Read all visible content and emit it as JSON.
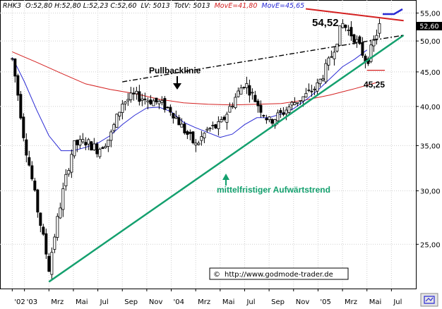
{
  "header": {
    "symbol": "RHK3",
    "ohlc": "O:52,80 H:52,80 L:52,23 C:52,60",
    "lv": "LV: 5013",
    "totv": "TotV: 5013",
    "ma1": "MovE=41,80",
    "ma2": "MovE=45,65"
  },
  "colors": {
    "background": "#ffffff",
    "grid": "#cfcfcf",
    "candle_up": "#ffffff",
    "candle_down": "#000000",
    "ma_fast": "#2a2ad4",
    "ma_slow": "#d42020",
    "trendline": "#14a06e",
    "resistance": "#d42020",
    "header_ma1": "#d42020",
    "header_ma2": "#2a2ad4",
    "last_price_box": "#000000"
  },
  "chart_data": {
    "type": "candlestick",
    "y_scale": "log",
    "ylim": [
      21.5,
      57.5
    ],
    "y_ticks": [
      "55,00",
      "50,00",
      "45,00",
      "40,00",
      "35,00",
      "30,00",
      "25,00"
    ],
    "y_tick_values": [
      55,
      50,
      45,
      40,
      35,
      30,
      25
    ],
    "x_tick_labels": [
      "'02",
      "'03",
      "Mrz",
      "Mai",
      "Jul",
      "Sep",
      "Nov",
      "'04",
      "Mrz",
      "Mai",
      "Jul",
      "Sep",
      "Nov",
      "'05",
      "Mrz",
      "Mai",
      "Jul"
    ],
    "x_tick_dates": [
      "2002-12",
      "2003-01",
      "2003-03",
      "2003-05",
      "2003-07",
      "2003-09",
      "2003-11",
      "2004-01",
      "2004-03",
      "2004-05",
      "2004-07",
      "2004-09",
      "2004-11",
      "2005-01",
      "2005-03",
      "2005-05",
      "2005-07"
    ],
    "x_range": [
      "2002-11",
      "2005-09"
    ],
    "last_price": "52,60",
    "last_price_value": 52.6,
    "annotations": {
      "high_label": "54,52",
      "high_value": 54.52,
      "low_label": "45,25",
      "low_value": 45.25,
      "pullback_label": "Pullbacklinie",
      "trend_label": "mittelfristiger Aufwärtstrend",
      "copyright": "http://www.godmode-trader.de",
      "copyright_symbol": "©"
    },
    "trendline_points": [
      [
        "2003-03",
        22.0
      ],
      [
        "2005-08",
        51.0
      ]
    ],
    "pullback_line_points": [
      [
        "2003-09",
        43.5
      ],
      [
        "2005-08",
        51.0
      ]
    ],
    "resistance_points": [
      [
        "2004-12",
        55.8
      ],
      [
        "2005-08",
        53.6
      ]
    ],
    "moving_average_slow": [
      [
        "2002-12",
        48.2
      ],
      [
        "2003-02",
        46.5
      ],
      [
        "2003-04",
        44.8
      ],
      [
        "2003-06",
        43.2
      ],
      [
        "2003-08",
        42.4
      ],
      [
        "2003-10",
        41.8
      ],
      [
        "2003-12",
        41.0
      ],
      [
        "2004-02",
        40.5
      ],
      [
        "2004-04",
        40.3
      ],
      [
        "2004-06",
        40.2
      ],
      [
        "2004-08",
        40.3
      ],
      [
        "2004-10",
        40.4
      ],
      [
        "2004-12",
        40.9
      ],
      [
        "2005-02",
        41.6
      ],
      [
        "2005-04",
        42.5
      ],
      [
        "2005-06",
        43.5
      ]
    ],
    "moving_average_fast": [
      [
        "2002-12",
        47.3
      ],
      [
        "2003-01",
        43.5
      ],
      [
        "2003-02",
        39.5
      ],
      [
        "2003-03",
        36.2
      ],
      [
        "2003-04",
        34.4
      ],
      [
        "2003-05",
        34.4
      ],
      [
        "2003-06",
        34.8
      ],
      [
        "2003-07",
        35.3
      ],
      [
        "2003-08",
        36.2
      ],
      [
        "2003-09",
        37.6
      ],
      [
        "2003-10",
        38.8
      ],
      [
        "2003-11",
        39.8
      ],
      [
        "2003-12",
        39.9
      ],
      [
        "2004-01",
        39.3
      ],
      [
        "2004-02",
        37.9
      ],
      [
        "2004-03",
        37.2
      ],
      [
        "2004-04",
        36.6
      ],
      [
        "2004-05",
        36.0
      ],
      [
        "2004-06",
        36.4
      ],
      [
        "2004-07",
        37.6
      ],
      [
        "2004-08",
        38.5
      ],
      [
        "2004-09",
        38.5
      ],
      [
        "2004-10",
        39.0
      ],
      [
        "2004-11",
        39.7
      ],
      [
        "2004-12",
        40.9
      ],
      [
        "2005-01",
        42.3
      ],
      [
        "2005-02",
        44.0
      ],
      [
        "2005-03",
        45.8
      ],
      [
        "2005-04",
        47.0
      ],
      [
        "2005-05",
        48.5
      ]
    ],
    "price_path": [
      [
        "2002-12",
        47.0
      ],
      [
        "2003-01",
        35.5
      ],
      [
        "2003-02",
        28.5
      ],
      [
        "2003-03",
        23.0
      ],
      [
        "2003-04",
        29.0
      ],
      [
        "2003-05",
        35.0
      ],
      [
        "2003-06",
        35.5
      ],
      [
        "2003-07",
        34.5
      ],
      [
        "2003-08",
        36.0
      ],
      [
        "2003-09",
        40.5
      ],
      [
        "2003-10",
        41.5
      ],
      [
        "2003-11",
        41.0
      ],
      [
        "2003-12",
        40.5
      ],
      [
        "2004-01",
        39.5
      ],
      [
        "2004-02",
        37.0
      ],
      [
        "2004-03",
        35.0
      ],
      [
        "2004-04",
        37.0
      ],
      [
        "2004-05",
        37.5
      ],
      [
        "2004-06",
        40.5
      ],
      [
        "2004-07",
        43.5
      ],
      [
        "2004-08",
        40.5
      ],
      [
        "2004-09",
        38.0
      ],
      [
        "2004-10",
        39.0
      ],
      [
        "2004-11",
        40.5
      ],
      [
        "2004-12",
        41.5
      ],
      [
        "2005-01",
        43.0
      ],
      [
        "2005-02",
        47.0
      ],
      [
        "2005-03",
        53.0
      ],
      [
        "2005-04",
        50.5
      ],
      [
        "2005-05",
        46.5
      ],
      [
        "2005-06",
        52.6
      ]
    ]
  }
}
